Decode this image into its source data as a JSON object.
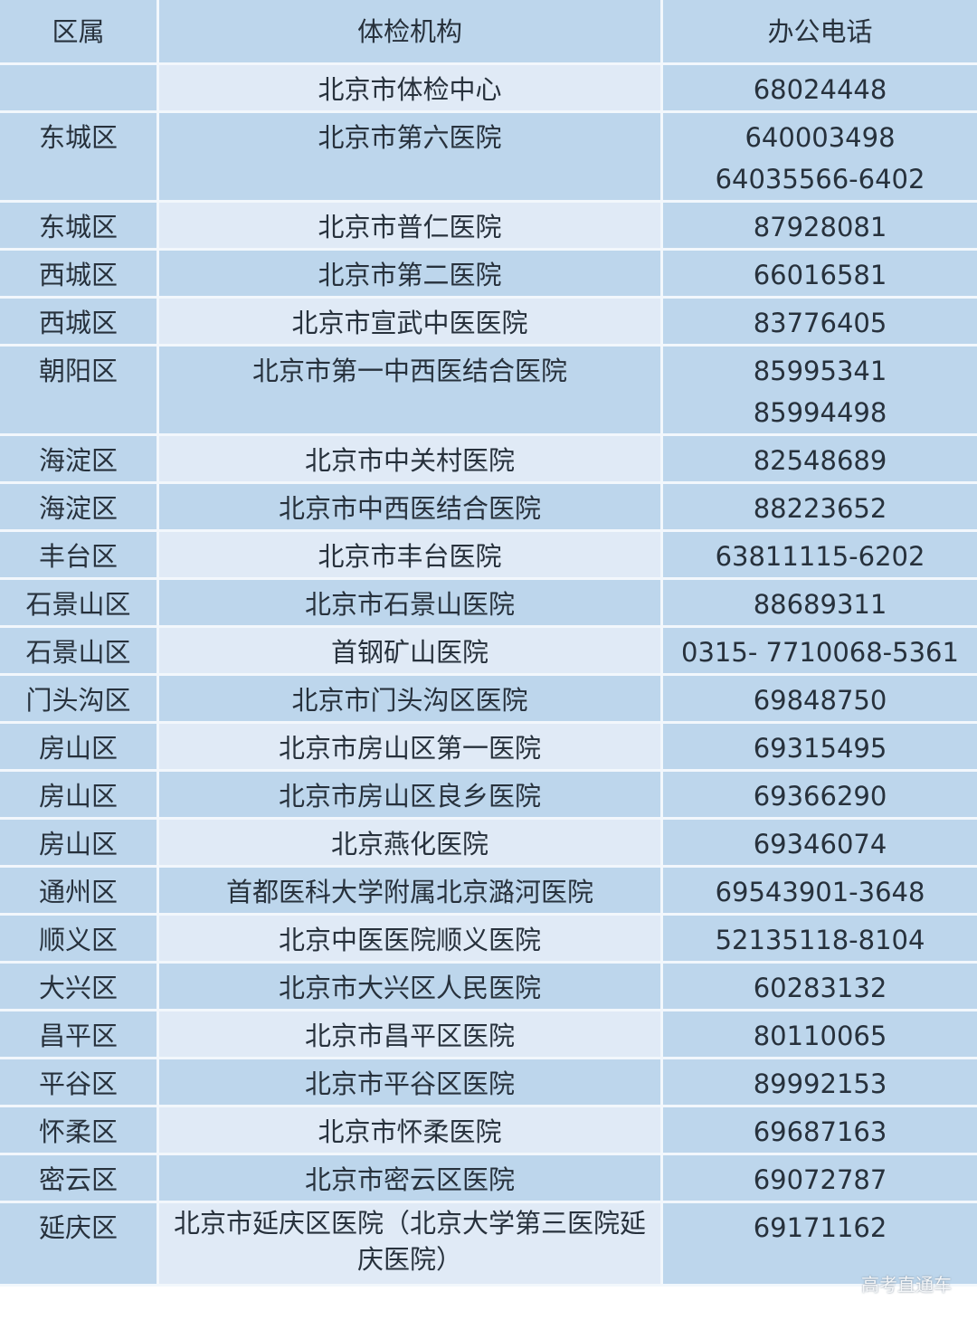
{
  "table": {
    "headers": [
      "区属",
      "体检机构",
      "办公电话"
    ],
    "rows": [
      {
        "district": "",
        "org": "北京市体检中心",
        "phones": [
          "68024448"
        ]
      },
      {
        "district": "东城区",
        "org": "北京市第六医院",
        "phones": [
          "640003498",
          "64035566-6402"
        ]
      },
      {
        "district": "东城区",
        "org": "北京市普仁医院",
        "phones": [
          "87928081"
        ]
      },
      {
        "district": "西城区",
        "org": "北京市第二医院",
        "phones": [
          "66016581"
        ]
      },
      {
        "district": "西城区",
        "org": "北京市宣武中医医院",
        "phones": [
          "83776405"
        ]
      },
      {
        "district": "朝阳区",
        "org": "北京市第一中西医结合医院",
        "phones": [
          "85995341",
          "85994498"
        ]
      },
      {
        "district": "海淀区",
        "org": "北京市中关村医院",
        "phones": [
          "82548689"
        ]
      },
      {
        "district": "海淀区",
        "org": "北京市中西医结合医院",
        "phones": [
          "88223652"
        ]
      },
      {
        "district": "丰台区",
        "org": "北京市丰台医院",
        "phones": [
          "63811115-6202"
        ]
      },
      {
        "district": "石景山区",
        "org": "北京市石景山医院",
        "phones": [
          "88689311"
        ]
      },
      {
        "district": "石景山区",
        "org": "首钢矿山医院",
        "phones": [
          "0315- 7710068-5361"
        ]
      },
      {
        "district": "门头沟区",
        "org": "北京市门头沟区医院",
        "phones": [
          "69848750"
        ]
      },
      {
        "district": "房山区",
        "org": "北京市房山区第一医院",
        "phones": [
          "69315495"
        ]
      },
      {
        "district": "房山区",
        "org": "北京市房山区良乡医院",
        "phones": [
          "69366290"
        ]
      },
      {
        "district": "房山区",
        "org": "北京燕化医院",
        "phones": [
          "69346074"
        ]
      },
      {
        "district": "通州区",
        "org": "首都医科大学附属北京潞河医院",
        "phones": [
          "69543901-3648"
        ]
      },
      {
        "district": "顺义区",
        "org": "北京中医医院顺义医院",
        "phones": [
          "52135118-8104"
        ]
      },
      {
        "district": "大兴区",
        "org": "北京市大兴区人民医院",
        "phones": [
          "60283132"
        ]
      },
      {
        "district": "昌平区",
        "org": "北京市昌平区医院",
        "phones": [
          "80110065"
        ]
      },
      {
        "district": "平谷区",
        "org": "北京市平谷区医院",
        "phones": [
          "89992153"
        ]
      },
      {
        "district": "怀柔区",
        "org": "北京市怀柔医院",
        "phones": [
          "69687163"
        ]
      },
      {
        "district": "密云区",
        "org": "北京市密云区医院",
        "phones": [
          "69072787"
        ]
      },
      {
        "district": "延庆区",
        "org": "北京市延庆区医院（北京大学第三医院延庆医院）",
        "phones": [
          "69171162"
        ]
      }
    ]
  },
  "watermark": "高考直通车",
  "colors": {
    "cell_blue": "#bdd6ec",
    "cell_light": "#e0eaf6",
    "text": "#27313c"
  }
}
